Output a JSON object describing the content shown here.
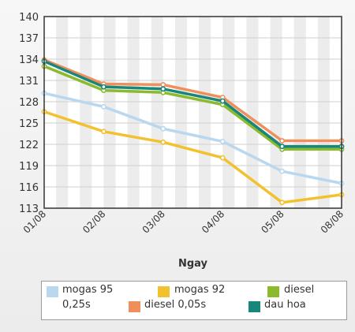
{
  "chart_data": {
    "type": "line",
    "categories": [
      "01/08",
      "02/08",
      "03/08",
      "04/08",
      "05/08",
      "08/08"
    ],
    "xlabel": "Ngay",
    "ylabel": "",
    "ylim": [
      113,
      140
    ],
    "yticks": [
      113,
      116,
      119,
      122,
      125,
      128,
      131,
      134,
      137,
      140
    ],
    "grid": true,
    "legend_position": "bottom",
    "series": [
      {
        "name": "mogas 95",
        "color": "#b9d8ef",
        "values": [
          129.2,
          127.3,
          124.2,
          122.4,
          118.2,
          116.5
        ]
      },
      {
        "name": "mogas 92",
        "color": "#f3c12d",
        "values": [
          126.6,
          123.8,
          122.3,
          120.1,
          113.8,
          114.9
        ]
      },
      {
        "name": "diesel 0,25s",
        "color": "#8cba2d",
        "values": [
          133.0,
          129.6,
          129.3,
          127.6,
          121.3,
          121.3
        ]
      },
      {
        "name": "diesel 0,05s",
        "color": "#f08e5c",
        "values": [
          133.9,
          130.5,
          130.4,
          128.6,
          122.5,
          122.5
        ]
      },
      {
        "name": "dau hoa",
        "color": "#16877a",
        "values": [
          133.7,
          130.1,
          129.8,
          128.1,
          121.7,
          121.7
        ]
      }
    ]
  }
}
